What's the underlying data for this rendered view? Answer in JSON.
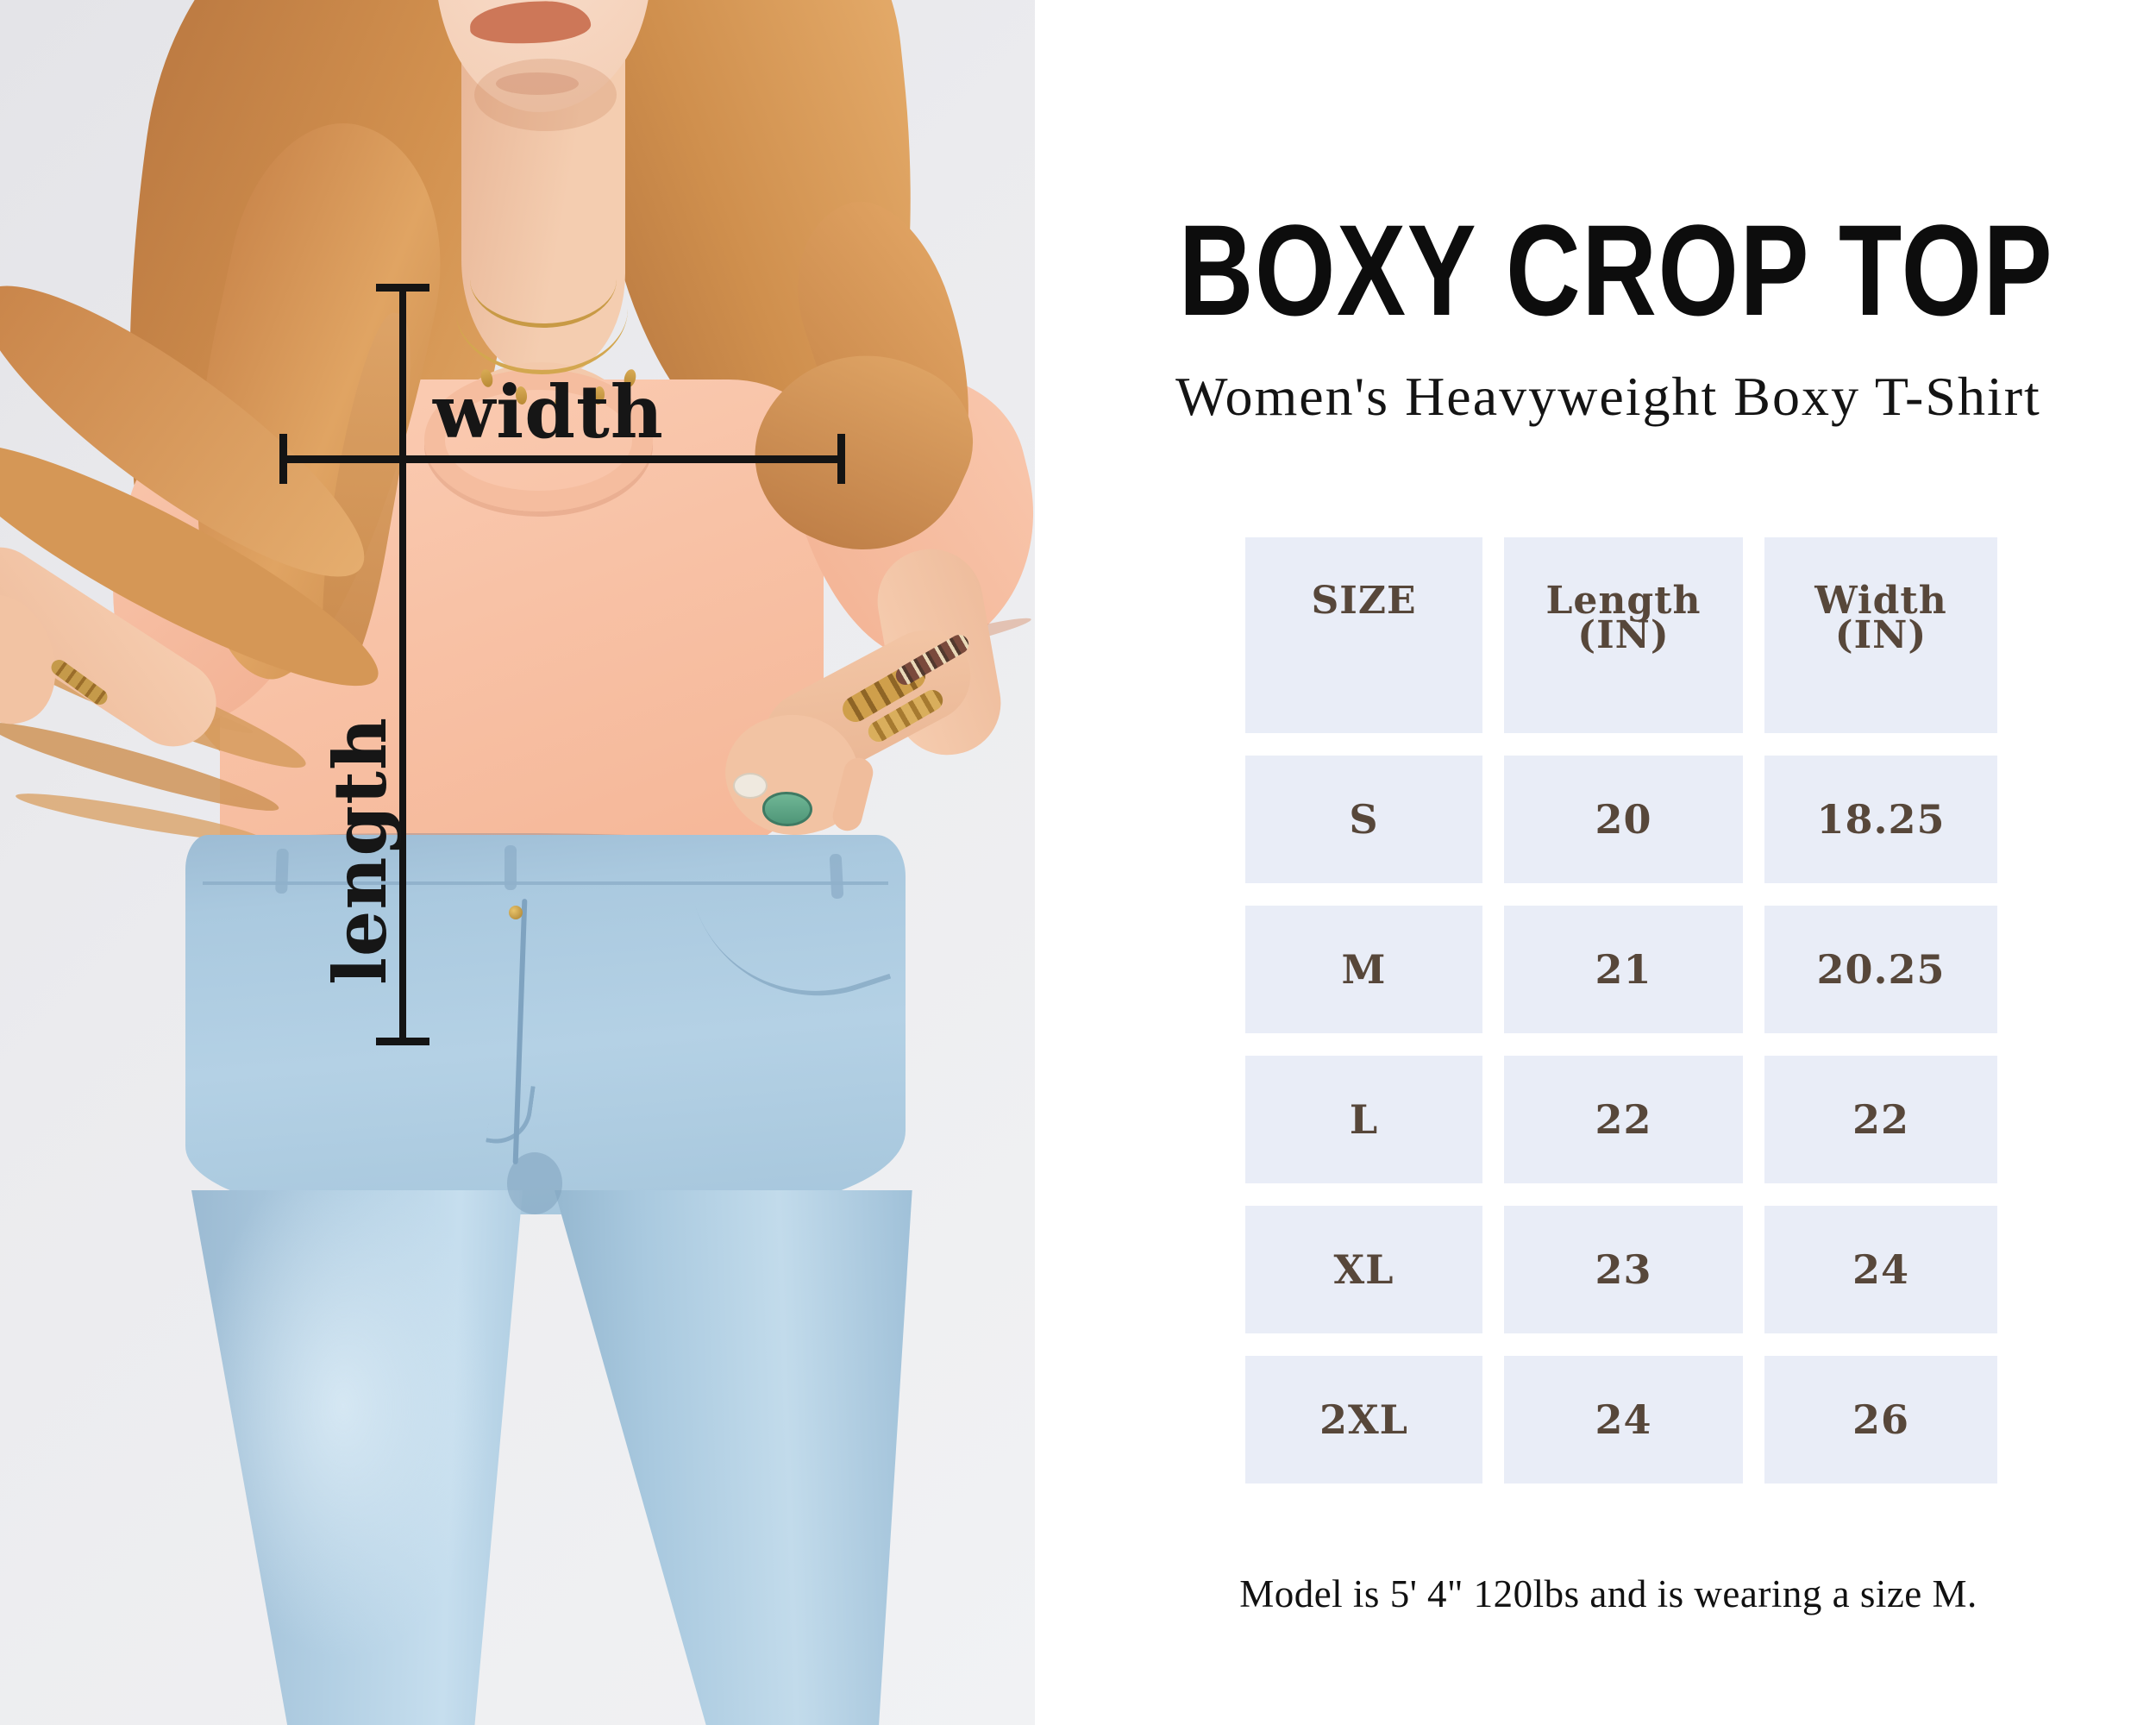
{
  "photo": {
    "description_colors": {
      "background": "#ebebee",
      "tshirt_peach": "#f8c2a6",
      "jeans_blue": "#aac9df",
      "hair": "#d2914f",
      "annotation_line": "#141414"
    },
    "annotations": {
      "width_label": "width",
      "length_label": "length"
    }
  },
  "panel": {
    "title": "BOXY CROP TOP",
    "subtitle": "Women's Heavyweight Boxy T-Shirt",
    "note": "Model is 5' 4\" 120lbs and is wearing a size M.",
    "colors": {
      "cell_background": "#e9edf7",
      "cell_text": "#57473a",
      "title_text": "#0d0d0d"
    }
  },
  "chart_data": {
    "type": "table",
    "title": "BOXY CROP TOP size chart",
    "columns": [
      {
        "label": "SIZE",
        "unit": ""
      },
      {
        "label": "Length",
        "unit": "(IN)"
      },
      {
        "label": "Width",
        "unit": "(IN)"
      }
    ],
    "rows": [
      [
        "S",
        "20",
        "18.25"
      ],
      [
        "M",
        "21",
        "20.25"
      ],
      [
        "L",
        "22",
        "22"
      ],
      [
        "XL",
        "23",
        "24"
      ],
      [
        "2XL",
        "24",
        "26"
      ]
    ]
  }
}
